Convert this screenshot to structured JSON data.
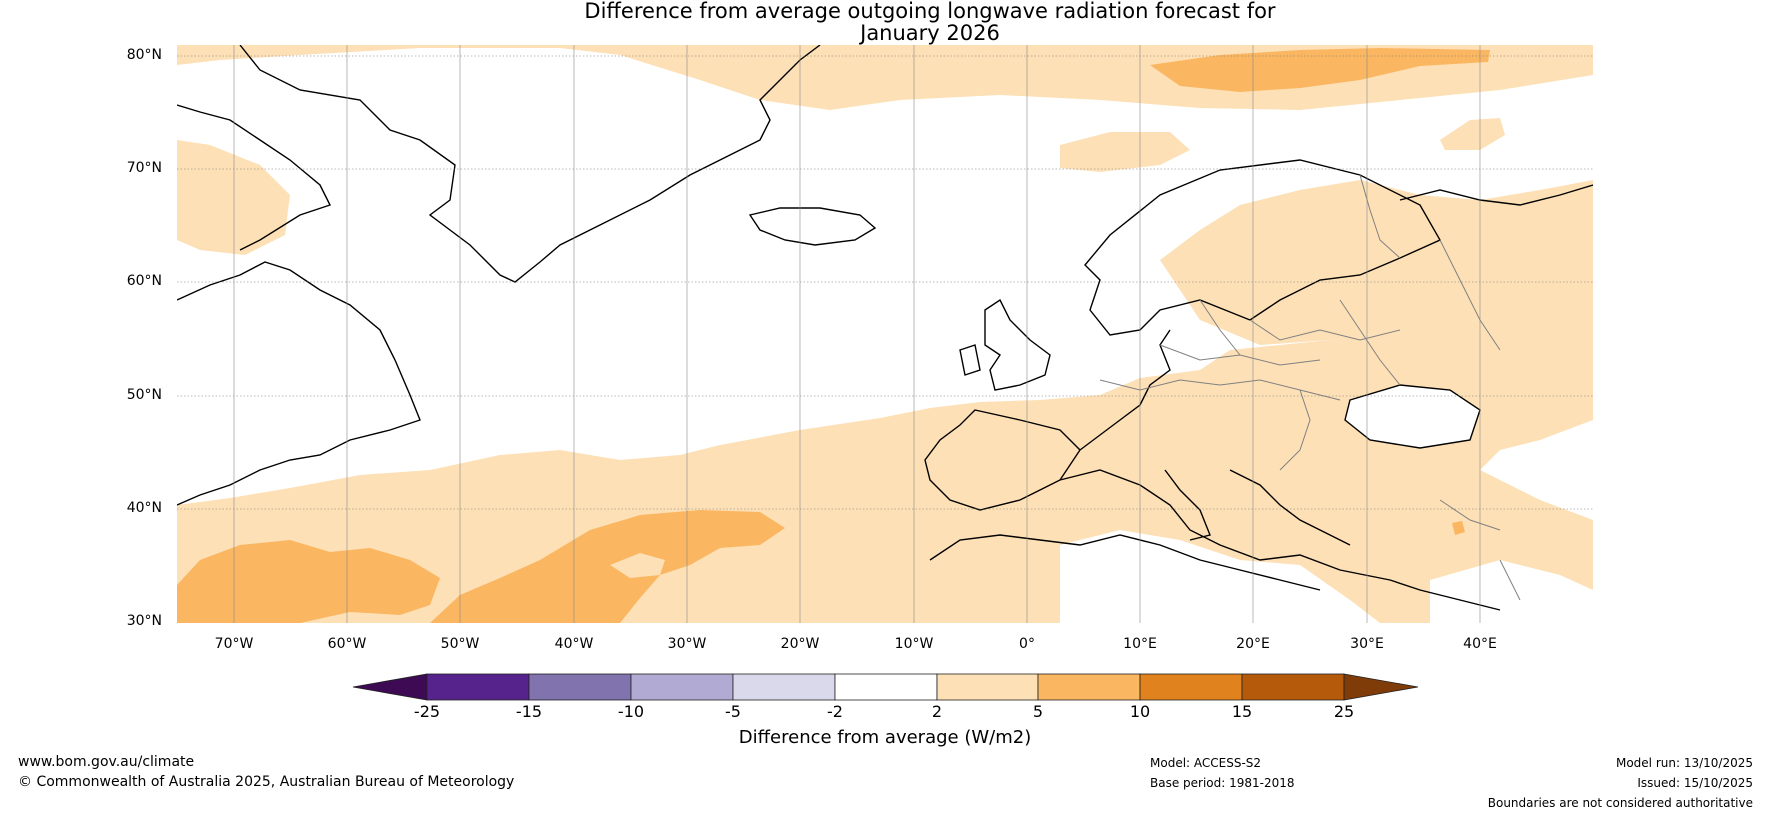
{
  "title": {
    "line1": "Difference from average outgoing longwave radiation forecast for",
    "line2": "January 2026"
  },
  "map": {
    "latitude_labels": [
      "80°N",
      "70°N",
      "60°N",
      "50°N",
      "40°N",
      "30°N"
    ],
    "longitude_labels": [
      "70°W",
      "60°W",
      "50°W",
      "40°W",
      "30°W",
      "20°W",
      "10°W",
      "0°",
      "10°E",
      "20°E",
      "30°E",
      "40°E"
    ],
    "extent": {
      "lon_min": -75,
      "lon_max": 50,
      "lat_min": 30,
      "lat_max": 81
    }
  },
  "colorbar": {
    "label": "Difference from average (W/m2)",
    "ticks": [
      "-25",
      "-15",
      "-10",
      "-5",
      "-2",
      "2",
      "5",
      "10",
      "15",
      "25"
    ],
    "colors": [
      "#3f0a54",
      "#56228b",
      "#8073ae",
      "#b1aad3",
      "#d9d9eb",
      "#ffffff",
      "#fde0b6",
      "#fbb661",
      "#e0821d",
      "#b45a0a",
      "#7f3b08"
    ]
  },
  "footer": {
    "website": "www.bom.gov.au/climate",
    "copyright": "© Commonwealth of Australia 2025, Australian Bureau of Meteorology",
    "model": "Model: ACCESS-S2",
    "base_period": "Base period: 1981-2018",
    "model_run": "Model run: 13/10/2025",
    "issued": "Issued: 15/10/2025",
    "disclaimer": "Boundaries are not considered authoritative"
  }
}
